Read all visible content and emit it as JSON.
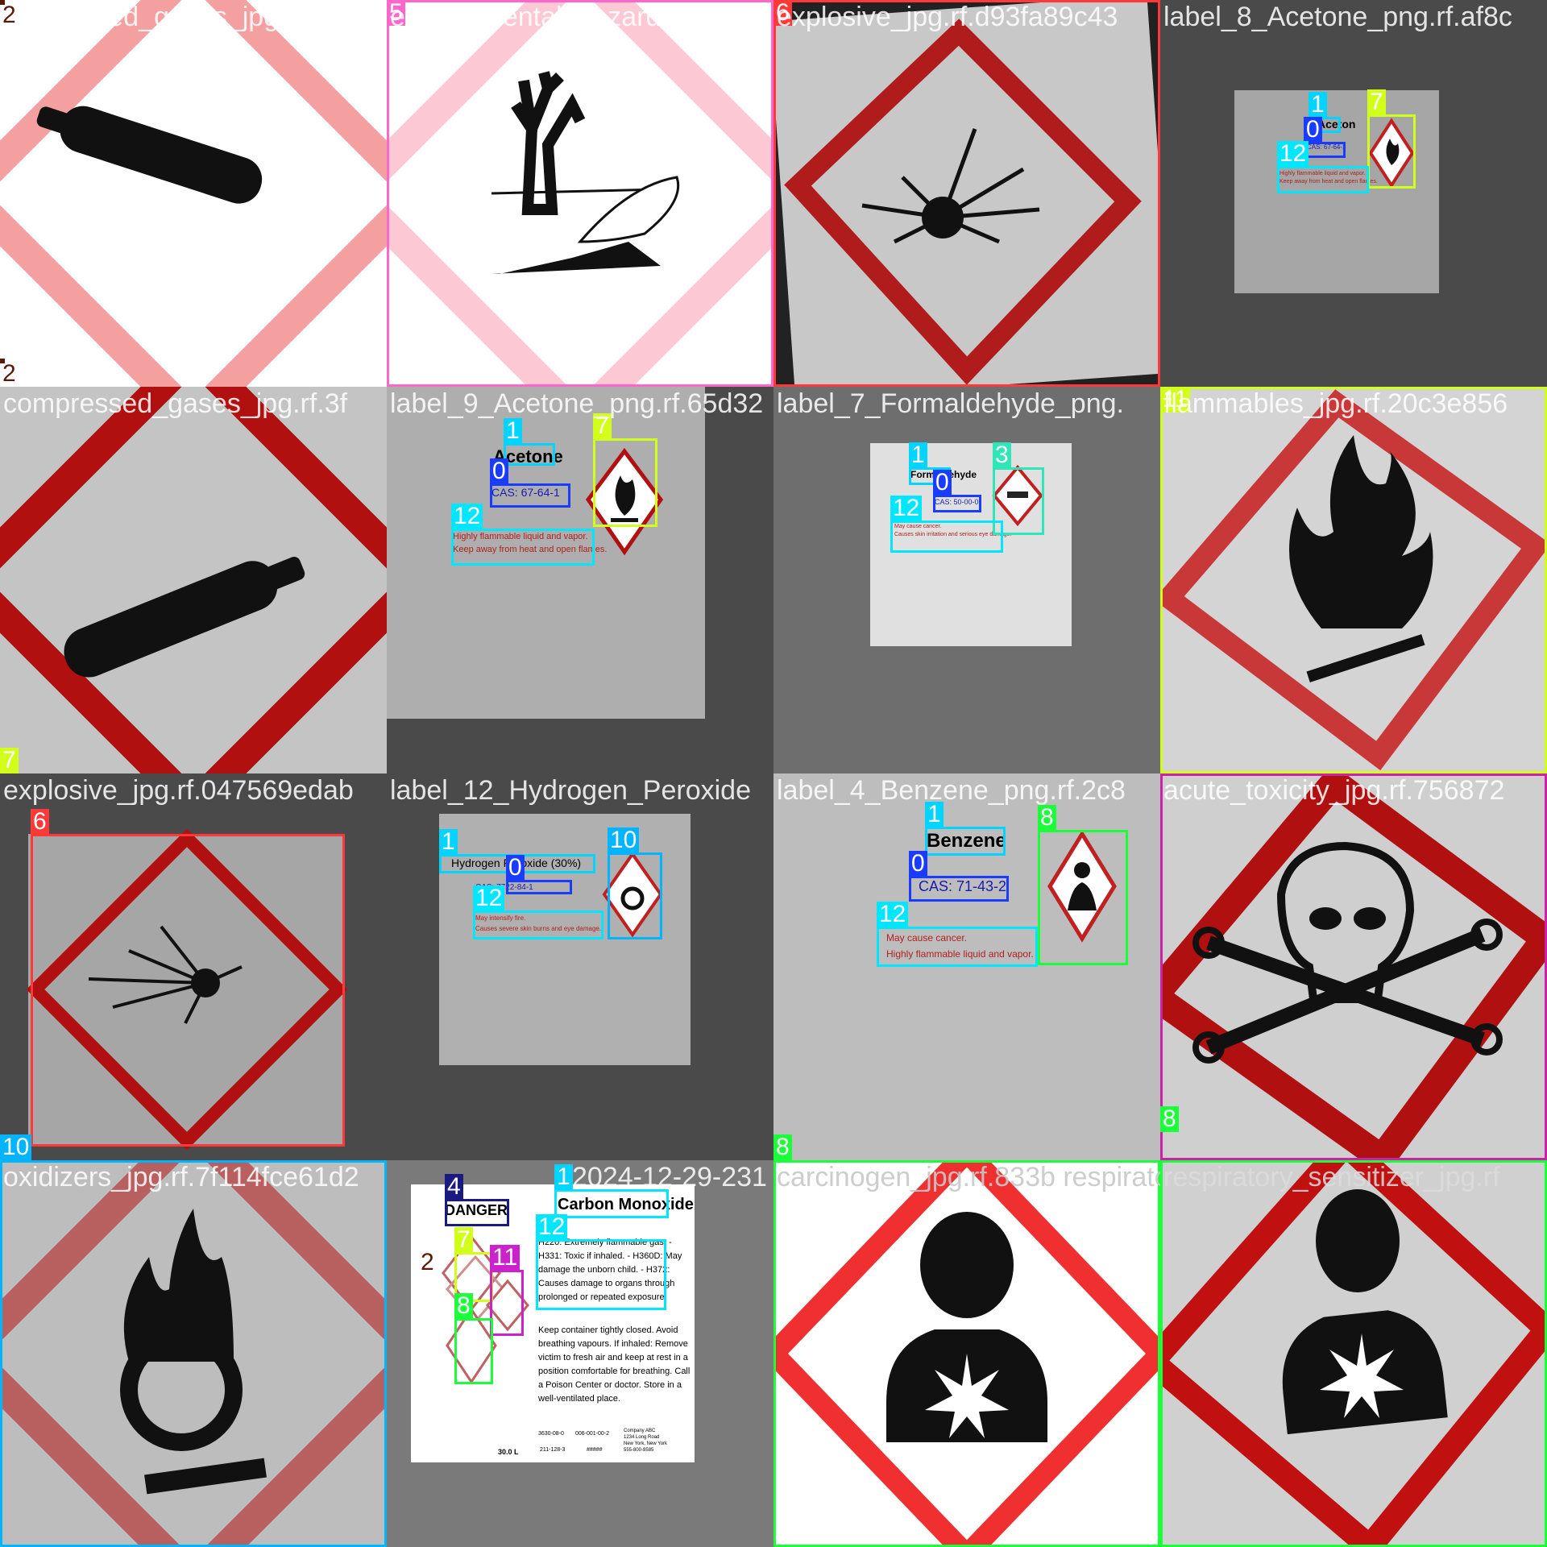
{
  "tiles": [
    {
      "name": "compressed_gases_jpg.rf.ce...",
      "filename": "ompressed_gases_jpg.rf.ce",
      "classes": [
        "2",
        "2"
      ]
    },
    {
      "name": "environmental_hazards",
      "filename": "environmental_hazards_jpg.",
      "classes": [
        "5"
      ]
    },
    {
      "name": "explosive",
      "filename": "explosive_jpg.rf.d93fa89c43",
      "classes": [
        "6"
      ]
    },
    {
      "name": "label_Acetone",
      "filename": "label_8_Acetone_png.rf.af8c",
      "classes": [
        "1",
        "7",
        "0",
        "12"
      ],
      "texts": {
        "name": "Aceton",
        "cas": "CAS: 67-64-1",
        "warn1": "Highly flammable liquid and vapor.",
        "warn2": "Keep away from heat and open flames."
      }
    },
    {
      "name": "compressed_gases_2",
      "filename": "compressed_gases_jpg.rf.3f",
      "classes": [
        "7"
      ]
    },
    {
      "name": "label_Acetone_2",
      "filename": "label_9_Acetone_png.rf.65d32",
      "classes": [
        "1",
        "7",
        "0",
        "12"
      ],
      "texts": {
        "name": "Acetone",
        "cas": "CAS: 67-64-1",
        "warn1": "Highly flammable liquid and vapor.",
        "warn2": "Keep away from heat and open flames."
      }
    },
    {
      "name": "label_Formaldehyde",
      "filename": "label_7_Formaldehyde_png.",
      "classes": [
        "1",
        "3",
        "0",
        "12"
      ],
      "texts": {
        "name": "Formaldehyde",
        "cas": "CAS: 50-00-0",
        "warn1": "May cause cancer.",
        "warn2": "Causes skin irritation and serious eye damage."
      }
    },
    {
      "name": "flammables",
      "filename": "flammables_jpg.rf.20c3e856",
      "classes": [
        "11"
      ]
    },
    {
      "name": "explosive_2",
      "filename": "explosive_jpg.rf.047569edab",
      "classes": [
        "6",
        "10"
      ]
    },
    {
      "name": "label_Hydrogen_Peroxide",
      "filename": "label_12_Hydrogen_Peroxide",
      "classes": [
        "1",
        "10",
        "0",
        "12"
      ],
      "texts": {
        "name": "Hydrogen Peroxide (30%)",
        "cas": "CAS: 7722-84-1",
        "warn1": "May intensify fire.",
        "warn2": "Causes severe skin burns and eye damage."
      }
    },
    {
      "name": "label_Benzene",
      "filename": "label_4_Benzene_png.rf.2c8",
      "classes": [
        "1",
        "8",
        "0",
        "12",
        "8"
      ],
      "texts": {
        "name": "Benzene",
        "cas": "CAS: 71-43-2",
        "warn1": "May cause cancer.",
        "warn2": "Highly flammable liquid and vapor."
      }
    },
    {
      "name": "acute_toxicity",
      "filename": "acute_toxicity_jpg.rf.756872",
      "classes": [
        "8"
      ]
    },
    {
      "name": "oxidizers",
      "filename": "oxidizers_jpg.rf.7f114fce61d2",
      "classes": []
    },
    {
      "name": "safety_data_sheet",
      "filename": "2024-12-29-231",
      "classes": [
        "4",
        "1",
        "12",
        "7",
        "2",
        "11",
        "8"
      ],
      "texts": {
        "danger": "DANGER",
        "product": "Carbon Monoxide",
        "h1": "H220: Extremely flammable gas. -",
        "h2": "H331: Toxic if inhaled. - H360D: May",
        "h3": "damage the unborn child. - H372:",
        "h4": "Causes damage to organs through",
        "h5": "prolonged or repeated exposure",
        "p1": "Keep container tightly closed. Avoid",
        "p2": "breathing vapours. If inhaled: Remove",
        "p3": "victim to fresh air and keep at rest in a",
        "p4": "position comfortable for breathing. Call",
        "p5": "a Poison Center or doctor. Store in a",
        "p6": "well-ventilated place.",
        "f1": "3630-08-0",
        "f2": "006-001-00-2",
        "f3": "Company ABC",
        "f4": "1234 Long Road",
        "f5": "New York, New York",
        "f6": "555-800-8585",
        "f7": "211-128-3",
        "f8": "#####",
        "f9": "30.0 L"
      }
    },
    {
      "name": "respiratory_sensitizer",
      "filename": "carcinogen_jpg.rf.833b respiratory_",
      "classes": []
    },
    {
      "name": "respiratory_sensitizer_2",
      "filename": "respiratory_sensitizer_jpg.rf",
      "classes": []
    }
  ]
}
